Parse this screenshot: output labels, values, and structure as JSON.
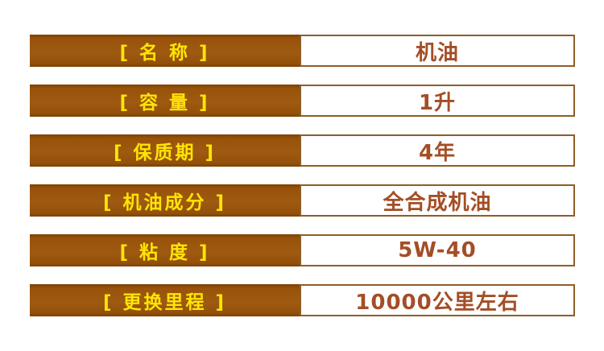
{
  "colors": {
    "bar_brown": "#9a5206",
    "bar_brown_edge": "#7a4103",
    "label_yellow": "#ffe404",
    "value_text_brown": "#a44e26",
    "value_border_brown": "#8f5d28",
    "page_background": "#ffffff"
  },
  "spec_table": {
    "rows": [
      {
        "label": "[ 名 称 ]",
        "value": "机油"
      },
      {
        "label": "[ 容 量 ]",
        "value": "1升"
      },
      {
        "label": "[ 保质期 ]",
        "value": "4年"
      },
      {
        "label": "[ 机油成分 ]",
        "value": "全合成机油"
      },
      {
        "label": "[ 粘 度 ]",
        "value": "5W-40"
      },
      {
        "label": "[ 更换里程 ]",
        "value": "10000公里左右"
      }
    ]
  }
}
